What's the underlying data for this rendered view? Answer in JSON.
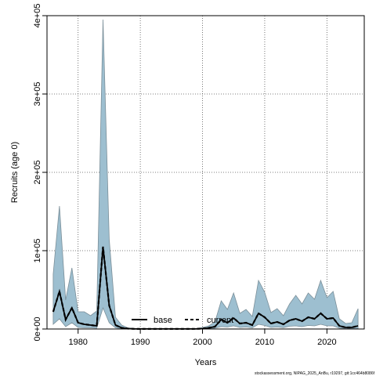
{
  "chart_data": {
    "type": "area",
    "xlabel": "Years",
    "ylabel": "Recruits (age 0)",
    "xlim": [
      1975,
      2026
    ],
    "ylim": [
      0,
      400000
    ],
    "x_ticks": [
      1980,
      1990,
      2000,
      2010,
      2020
    ],
    "y_ticks": [
      0,
      100000,
      200000,
      300000,
      400000
    ],
    "y_tick_labels": [
      "0e+00",
      "1e+05",
      "2e+05",
      "3e+05",
      "4e+05"
    ],
    "grid": true,
    "legend_position": "bottom-center",
    "footnote": "stockassessment.org, NIPAG_2025_AnBu, r19297, git:1cc464b8086f",
    "colors": {
      "band_fill": "#9dbfd0",
      "band_stroke": "#7b8f99",
      "line": "#000000",
      "grid": "#555555"
    },
    "x": [
      1976,
      1977,
      1978,
      1979,
      1980,
      1981,
      1982,
      1983,
      1984,
      1985,
      1986,
      1987,
      1988,
      1989,
      1990,
      1991,
      1992,
      1993,
      1994,
      1995,
      1996,
      1997,
      1998,
      1999,
      2000,
      2001,
      2002,
      2003,
      2004,
      2005,
      2006,
      2007,
      2008,
      2009,
      2010,
      2011,
      2012,
      2013,
      2014,
      2015,
      2016,
      2017,
      2018,
      2019,
      2020,
      2021,
      2022,
      2023,
      2024,
      2025
    ],
    "series": [
      {
        "name": "base",
        "style": "solid",
        "values": [
          22000,
          48000,
          12000,
          27000,
          8000,
          6000,
          5000,
          4000,
          105000,
          30000,
          5000,
          1500,
          500,
          200,
          100,
          100,
          100,
          100,
          100,
          100,
          100,
          100,
          100,
          200,
          500,
          1500,
          3000,
          12000,
          8000,
          14000,
          7000,
          8000,
          5000,
          20000,
          15000,
          7000,
          9000,
          6000,
          11000,
          13000,
          10000,
          15000,
          13000,
          20000,
          13000,
          14000,
          4000,
          2000,
          2000,
          4000
        ],
        "upper": [
          70000,
          157000,
          37000,
          78000,
          22000,
          22000,
          17000,
          23000,
          395000,
          115000,
          15000,
          5000,
          1500,
          600,
          300,
          300,
          300,
          300,
          300,
          300,
          300,
          300,
          300,
          500,
          2000,
          4000,
          9000,
          36000,
          25000,
          46000,
          20000,
          25000,
          16000,
          62000,
          47000,
          21000,
          26000,
          17000,
          32000,
          43000,
          32000,
          46000,
          38000,
          62000,
          40000,
          48000,
          13000,
          7000,
          8000,
          26000
        ],
        "lower": [
          6000,
          13000,
          3000,
          8000,
          2000,
          1500,
          1500,
          1000,
          27000,
          8000,
          1500,
          300,
          100,
          50,
          20,
          20,
          20,
          20,
          20,
          20,
          20,
          20,
          20,
          50,
          100,
          400,
          1000,
          3000,
          2500,
          4000,
          2000,
          2500,
          1500,
          6000,
          4500,
          2000,
          2500,
          1800,
          3500,
          4000,
          3000,
          4500,
          4000,
          6000,
          4000,
          4000,
          1200,
          500,
          500,
          600
        ]
      },
      {
        "name": "current",
        "style": "dashed",
        "values": [
          22000,
          48000,
          12000,
          27000,
          8000,
          6000,
          5000,
          4000,
          105000,
          30000,
          5000,
          1500,
          500,
          200,
          100,
          100,
          100,
          100,
          100,
          100,
          100,
          100,
          100,
          200,
          500,
          1500,
          3000,
          12000,
          8000,
          14000,
          7000,
          8000,
          5000,
          20000,
          15000,
          7000,
          9000,
          6000,
          11000,
          13000,
          10000,
          15000,
          13000,
          20000,
          13000,
          14000,
          4000,
          2000,
          2000,
          4000
        ]
      }
    ]
  }
}
